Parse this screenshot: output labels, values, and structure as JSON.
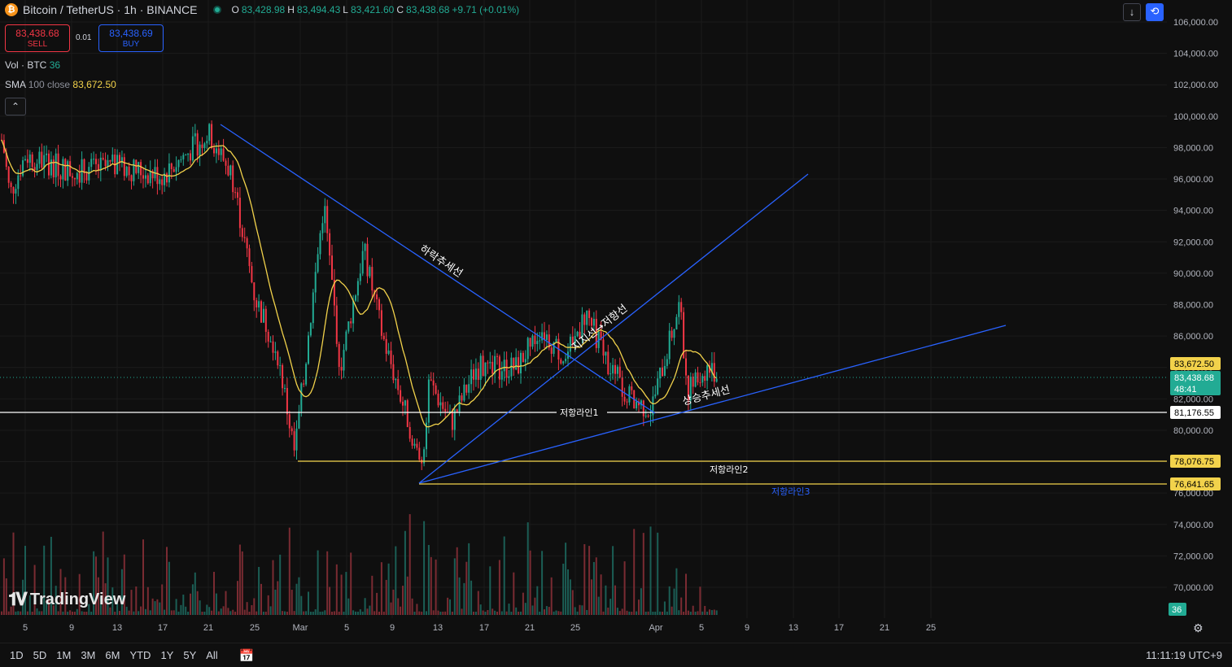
{
  "header": {
    "symbol_icon": "bitcoin-icon",
    "symbol_title": "Bitcoin / TetherUS · 1h · BINANCE",
    "ohlc": {
      "o_label": "O",
      "o": "83,428.98",
      "h_label": "H",
      "h": "83,494.43",
      "l_label": "L",
      "l": "83,421.60",
      "c_label": "C",
      "c": "83,438.68",
      "change": "+9.71 (+0.01%)"
    }
  },
  "trade": {
    "sell_price": "83,438.68",
    "sell_label": "SELL",
    "spread": "0.01",
    "buy_price": "83,438.69",
    "buy_label": "BUY"
  },
  "indicators": {
    "vol_label": "Vol · BTC",
    "vol_value": "36",
    "sma_label": "SMA",
    "sma_params": "100 close",
    "sma_value": "83,672.50"
  },
  "price_axis": {
    "ticks": [
      "106,000.00",
      "104,000.00",
      "102,000.00",
      "100,000.00",
      "98,000.00",
      "96,000.00",
      "94,000.00",
      "92,000.00",
      "90,000.00",
      "88,000.00",
      "86,000.00",
      "84,000.00",
      "82,000.00",
      "80,000.00",
      "78,000.00",
      "76,000.00",
      "74,000.00",
      "72,000.00",
      "70,000.00"
    ],
    "label_sma": "83,672.50",
    "label_last": "83,438.68",
    "label_countdown": "48:41",
    "label_line1": "81,176.55",
    "label_line2": "78,076.75",
    "label_line3": "76,641.65",
    "label_volume": "36"
  },
  "time_axis": {
    "labels": [
      "5",
      "9",
      "13",
      "17",
      "21",
      "25",
      "Mar",
      "5",
      "9",
      "13",
      "17",
      "21",
      "25",
      "Apr",
      "5",
      "9",
      "13",
      "17",
      "21",
      "25"
    ]
  },
  "annotations": {
    "downtrend": "하락추세선",
    "support_resistance": "지지선→저항선",
    "uptrend": "상승추세선",
    "line1": "저항라인1",
    "line2": "저항라인2",
    "line3": "저항라인3"
  },
  "colors": {
    "up": "#22ab94",
    "down": "#f23645",
    "trend": "#2962ff",
    "sma": "#f2d24b",
    "hline_yellow": "#f2d24b",
    "hline_white": "#ffffff"
  },
  "logo_text": "TradingView",
  "bottom": {
    "ranges": [
      "1D",
      "5D",
      "1M",
      "3M",
      "6M",
      "YTD",
      "1Y",
      "5Y",
      "All"
    ],
    "clock": "11:11:19 UTC+9"
  },
  "chart_data": {
    "type": "candlestick",
    "instrument": "BTCUSDT",
    "ylim": [
      68000,
      107000
    ],
    "approx_path": [
      {
        "x": "Feb 2",
        "y": 98500
      },
      {
        "x": "Feb 3",
        "y": 95000
      },
      {
        "x": "Feb 5",
        "y": 97500
      },
      {
        "x": "Feb 9",
        "y": 96500
      },
      {
        "x": "Feb 13",
        "y": 96800
      },
      {
        "x": "Feb 17",
        "y": 96200
      },
      {
        "x": "Feb 21",
        "y": 98900
      },
      {
        "x": "Feb 23",
        "y": 96300
      },
      {
        "x": "Feb 25",
        "y": 88500
      },
      {
        "x": "Feb 27",
        "y": 85000
      },
      {
        "x": "Feb 28",
        "y": 78500
      },
      {
        "x": "Mar 2",
        "y": 94500
      },
      {
        "x": "Mar 4",
        "y": 84000
      },
      {
        "x": "Mar 6",
        "y": 91500
      },
      {
        "x": "Mar 8",
        "y": 86000
      },
      {
        "x": "Mar 10",
        "y": 80000
      },
      {
        "x": "Mar 11",
        "y": 77500
      },
      {
        "x": "Mar 12",
        "y": 83000
      },
      {
        "x": "Mar 14",
        "y": 80500
      },
      {
        "x": "Mar 16",
        "y": 84000
      },
      {
        "x": "Mar 20",
        "y": 84000
      },
      {
        "x": "Mar 22",
        "y": 86500
      },
      {
        "x": "Mar 24",
        "y": 84500
      },
      {
        "x": "Mar 26",
        "y": 87500
      },
      {
        "x": "Mar 28",
        "y": 84000
      },
      {
        "x": "Mar 30",
        "y": 82000
      },
      {
        "x": "Mar 31",
        "y": 81300
      },
      {
        "x": "Apr 2",
        "y": 88000
      },
      {
        "x": "Apr 3",
        "y": 82500
      },
      {
        "x": "Apr 5",
        "y": 84000
      },
      {
        "x": "Apr 6",
        "y": 83438.68
      }
    ],
    "sma": {
      "name": "SMA 100 close",
      "last": 83672.5
    },
    "horizontal_lines": [
      81176.55,
      78076.75,
      76641.65
    ],
    "last_price": 83438.68
  }
}
